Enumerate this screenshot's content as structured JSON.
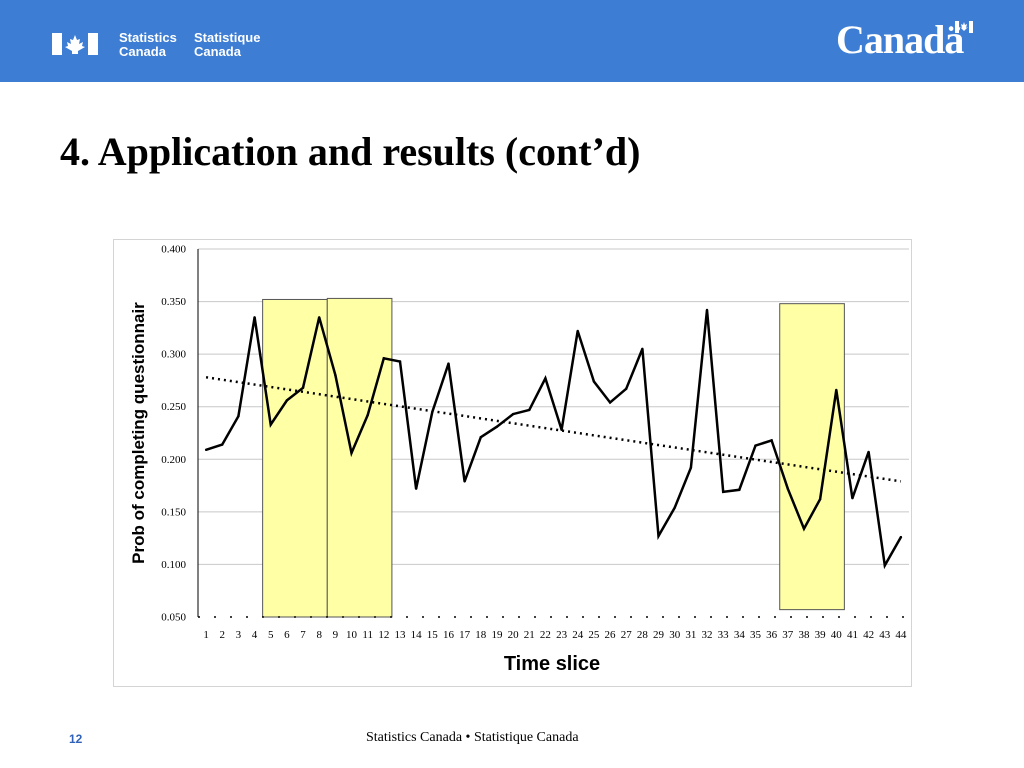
{
  "header": {
    "agency_en": [
      "Statistics",
      "Canada"
    ],
    "agency_fr": [
      "Statistique",
      "Canada"
    ],
    "wordmark": "Canadä",
    "banner_color": "#3d7dd4"
  },
  "slide": {
    "title": "4. Application and results (cont’d)"
  },
  "chart_data": {
    "type": "line",
    "xlabel": "Time slice",
    "ylabel": "Prob of completing questionnair",
    "ylim": [
      0.05,
      0.4
    ],
    "yticks": [
      "0.050",
      "0.100",
      "0.150",
      "0.200",
      "0.250",
      "0.300",
      "0.350",
      "0.400"
    ],
    "categories": [
      "1",
      "2",
      "3",
      "4",
      "5",
      "6",
      "7",
      "8",
      "9",
      "10",
      "11",
      "12",
      "13",
      "14",
      "15",
      "16",
      "17",
      "18",
      "19",
      "20",
      "21",
      "22",
      "23",
      "24",
      "25",
      "26",
      "27",
      "28",
      "29",
      "30",
      "31",
      "32",
      "33",
      "34",
      "35",
      "36",
      "37",
      "38",
      "39",
      "40",
      "41",
      "42",
      "43",
      "44"
    ],
    "series": [
      {
        "values": [
          0.209,
          0.214,
          0.241,
          0.335,
          0.233,
          0.256,
          0.268,
          0.335,
          0.28,
          0.206,
          0.242,
          0.296,
          0.293,
          0.172,
          0.245,
          0.291,
          0.179,
          0.221,
          0.231,
          0.243,
          0.247,
          0.277,
          0.228,
          0.322,
          0.274,
          0.254,
          0.267,
          0.305,
          0.127,
          0.154,
          0.192,
          0.342,
          0.169,
          0.171,
          0.213,
          0.218,
          0.172,
          0.134,
          0.162,
          0.266,
          0.163,
          0.207,
          0.099,
          0.126
        ],
        "color": "#000000"
      }
    ],
    "trendline": {
      "style": "dotted",
      "start": 0.278,
      "end": 0.179,
      "color": "#000000"
    },
    "highlights": [
      {
        "from": 5,
        "to": 8,
        "ymax": 0.352,
        "fill": "#ffffa6"
      },
      {
        "from": 9,
        "to": 12,
        "ymax": 0.353,
        "fill": "#ffffa6"
      },
      {
        "from": 37,
        "to": 40,
        "ymax": 0.348,
        "ymin": 0.057,
        "fill": "#ffffa6"
      }
    ],
    "grid": true,
    "legend": "none"
  },
  "footer": {
    "page_number": "12",
    "text": "Statistics Canada • Statistique Canada"
  }
}
